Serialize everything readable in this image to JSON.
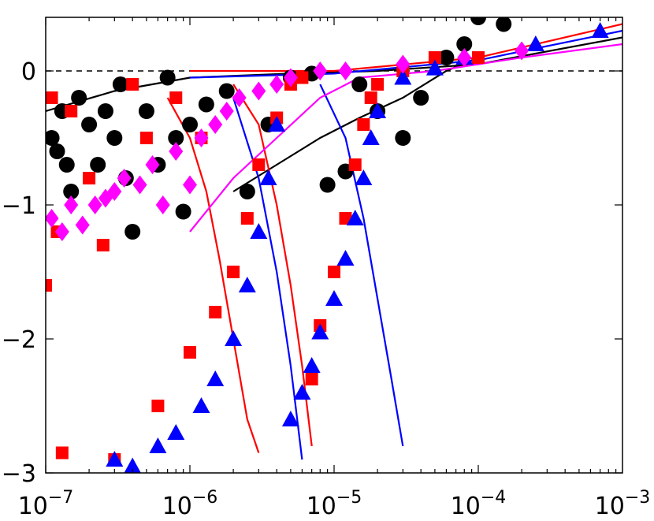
{
  "chart_data": {
    "type": "scatter",
    "x_scale": "log",
    "xlim": [
      1e-07,
      0.001
    ],
    "ylim": [
      -3,
      0.4
    ],
    "x_ticks": [
      {
        "value": 1e-07,
        "base": "10",
        "exp": "−7"
      },
      {
        "value": 1e-06,
        "base": "10",
        "exp": "−6"
      },
      {
        "value": 1e-05,
        "base": "10",
        "exp": "−5"
      },
      {
        "value": 0.0001,
        "base": "10",
        "exp": "−4"
      },
      {
        "value": 0.001,
        "base": "10",
        "exp": "−3"
      }
    ],
    "y_ticks": [
      {
        "value": 0,
        "label": "0"
      },
      {
        "value": -1,
        "label": "−1"
      },
      {
        "value": -2,
        "label": "−2"
      },
      {
        "value": -3,
        "label": "−3"
      }
    ],
    "reference_line": {
      "y": 0,
      "style": "dashed"
    },
    "colors": {
      "black": "#000000",
      "red": "#ff0000",
      "blue": "#0000ff",
      "magenta": "#ff00ff"
    },
    "series": [
      {
        "marker": "circle",
        "color": "#000000",
        "points": [
          [
            1.1e-07,
            -0.5
          ],
          [
            1.2e-07,
            -0.6
          ],
          [
            1.3e-07,
            -0.3
          ],
          [
            1.4e-07,
            -0.7
          ],
          [
            1.5e-07,
            -0.9
          ],
          [
            1.7e-07,
            -0.2
          ],
          [
            2e-07,
            -0.4
          ],
          [
            2.3e-07,
            -0.7
          ],
          [
            2.6e-07,
            -0.3
          ],
          [
            3e-07,
            -0.5
          ],
          [
            3.3e-07,
            -0.1
          ],
          [
            3.6e-07,
            -0.8
          ],
          [
            4e-07,
            -1.2
          ],
          [
            5e-07,
            -0.3
          ],
          [
            6e-07,
            -0.7
          ],
          [
            7e-07,
            -0.05
          ],
          [
            8e-07,
            -0.5
          ],
          [
            9e-07,
            -1.05
          ],
          [
            1e-06,
            -0.4
          ],
          [
            1.3e-06,
            -0.25
          ],
          [
            1.8e-06,
            -0.15
          ],
          [
            2.5e-06,
            -0.9
          ],
          [
            3.5e-06,
            -0.4
          ],
          [
            5e-06,
            -0.05
          ],
          [
            7e-06,
            -0.02
          ],
          [
            9e-06,
            -0.85
          ],
          [
            1.2e-05,
            -0.75
          ],
          [
            1.5e-05,
            -0.1
          ],
          [
            2e-05,
            -0.3
          ],
          [
            3e-05,
            -0.5
          ],
          [
            4e-05,
            -0.2
          ],
          [
            6e-05,
            0.1
          ],
          [
            8e-05,
            0.2
          ],
          [
            0.0001,
            0.4
          ],
          [
            0.00015,
            0.35
          ]
        ]
      },
      {
        "marker": "square",
        "color": "#ff0000",
        "points": [
          [
            1e-07,
            -1.6
          ],
          [
            1.1e-07,
            -0.2
          ],
          [
            1.2e-07,
            -1.2
          ],
          [
            1.3e-07,
            -2.85
          ],
          [
            1.5e-07,
            -0.3
          ],
          [
            2e-07,
            -0.8
          ],
          [
            2.5e-07,
            -1.3
          ],
          [
            3e-07,
            -2.9
          ],
          [
            4e-07,
            -0.1
          ],
          [
            5e-07,
            -0.5
          ],
          [
            6e-07,
            -2.5
          ],
          [
            8e-07,
            -0.2
          ],
          [
            1e-06,
            -2.1
          ],
          [
            1.2e-06,
            -0.5
          ],
          [
            1.5e-06,
            -1.8
          ],
          [
            2e-06,
            -1.5
          ],
          [
            2.5e-06,
            -1.1
          ],
          [
            3e-06,
            -0.7
          ],
          [
            4e-06,
            -0.35
          ],
          [
            5e-06,
            -0.1
          ],
          [
            6e-06,
            -0.05
          ],
          [
            7e-06,
            -2.3
          ],
          [
            8e-06,
            -1.9
          ],
          [
            1e-05,
            -1.5
          ],
          [
            1.2e-05,
            -1.1
          ],
          [
            1.4e-05,
            -0.7
          ],
          [
            1.6e-05,
            -0.4
          ],
          [
            1.8e-05,
            -0.2
          ],
          [
            2e-05,
            -0.1
          ],
          [
            3e-05,
            0.0
          ],
          [
            5e-05,
            0.1
          ],
          [
            0.0001,
            0.1
          ]
        ]
      },
      {
        "marker": "triangle",
        "color": "#0000ff",
        "points": [
          [
            3e-07,
            -2.9
          ],
          [
            4e-07,
            -2.95
          ],
          [
            6e-07,
            -2.8
          ],
          [
            8e-07,
            -2.7
          ],
          [
            1.2e-06,
            -2.5
          ],
          [
            1.5e-06,
            -2.3
          ],
          [
            2e-06,
            -2.0
          ],
          [
            2.5e-06,
            -1.6
          ],
          [
            3e-06,
            -1.2
          ],
          [
            3.5e-06,
            -0.8
          ],
          [
            4e-06,
            -0.4
          ],
          [
            5e-06,
            -2.6
          ],
          [
            6e-06,
            -2.4
          ],
          [
            7e-06,
            -2.2
          ],
          [
            8e-06,
            -1.95
          ],
          [
            1e-05,
            -1.7
          ],
          [
            1.2e-05,
            -1.4
          ],
          [
            1.4e-05,
            -1.1
          ],
          [
            1.6e-05,
            -0.8
          ],
          [
            1.8e-05,
            -0.5
          ],
          [
            2e-05,
            -0.3
          ],
          [
            3e-05,
            -0.05
          ],
          [
            5e-05,
            0.02
          ],
          [
            8e-05,
            0.1
          ],
          [
            0.00025,
            0.2
          ],
          [
            0.0007,
            0.3
          ]
        ]
      },
      {
        "marker": "diamond",
        "color": "#ff00ff",
        "points": [
          [
            1.1e-07,
            -1.1
          ],
          [
            1.3e-07,
            -1.2
          ],
          [
            1.5e-07,
            -1.0
          ],
          [
            1.8e-07,
            -1.15
          ],
          [
            2.2e-07,
            -1.0
          ],
          [
            2.6e-07,
            -0.95
          ],
          [
            3e-07,
            -0.9
          ],
          [
            3.5e-07,
            -0.8
          ],
          [
            4.5e-07,
            -0.85
          ],
          [
            5.5e-07,
            -0.7
          ],
          [
            6.5e-07,
            -1.0
          ],
          [
            8e-07,
            -0.6
          ],
          [
            1e-06,
            -0.85
          ],
          [
            1.2e-06,
            -0.5
          ],
          [
            1.5e-06,
            -0.4
          ],
          [
            1.8e-06,
            -0.3
          ],
          [
            2.2e-06,
            -0.2
          ],
          [
            3e-06,
            -0.15
          ],
          [
            4e-06,
            -0.1
          ],
          [
            5e-06,
            -0.05
          ],
          [
            8e-06,
            0.0
          ],
          [
            1.2e-05,
            0.0
          ],
          [
            3e-05,
            0.05
          ],
          [
            8e-05,
            0.1
          ],
          [
            0.0002,
            0.15
          ]
        ]
      }
    ],
    "lines": [
      {
        "color": "#000000",
        "points": [
          [
            1e-07,
            -0.3
          ],
          [
            3e-07,
            -0.15
          ],
          [
            1e-06,
            -0.05
          ],
          [
            5e-06,
            -0.02
          ],
          [
            2e-05,
            0.0
          ],
          [
            0.0001,
            0.05
          ],
          [
            0.001,
            0.25
          ]
        ]
      },
      {
        "color": "#000000",
        "points": [
          [
            2e-06,
            -0.9
          ],
          [
            4e-06,
            -0.7
          ],
          [
            8e-06,
            -0.5
          ],
          [
            1.5e-05,
            -0.35
          ],
          [
            3e-05,
            -0.2
          ],
          [
            6e-05,
            0.0
          ],
          [
            0.0001,
            0.1
          ]
        ]
      },
      {
        "color": "#ff0000",
        "points": [
          [
            7e-07,
            -0.2
          ],
          [
            1e-06,
            -0.5
          ],
          [
            1.3e-06,
            -0.9
          ],
          [
            1.6e-06,
            -1.4
          ],
          [
            2e-06,
            -2.0
          ],
          [
            2.5e-06,
            -2.6
          ],
          [
            3e-06,
            -2.85
          ]
        ]
      },
      {
        "color": "#ff0000",
        "points": [
          [
            2e-06,
            -0.1
          ],
          [
            3e-06,
            -0.4
          ],
          [
            4e-06,
            -1.0
          ],
          [
            5e-06,
            -1.6
          ],
          [
            6e-06,
            -2.2
          ],
          [
            7e-06,
            -2.8
          ]
        ]
      },
      {
        "color": "#0000ff",
        "points": [
          [
            2e-06,
            -0.2
          ],
          [
            3e-06,
            -0.8
          ],
          [
            4e-06,
            -1.5
          ],
          [
            5e-06,
            -2.2
          ],
          [
            6e-06,
            -2.9
          ]
        ]
      },
      {
        "color": "#0000ff",
        "points": [
          [
            8e-06,
            -0.1
          ],
          [
            1.2e-05,
            -0.5
          ],
          [
            1.6e-05,
            -1.1
          ],
          [
            2e-05,
            -1.7
          ],
          [
            2.5e-05,
            -2.3
          ],
          [
            3e-05,
            -2.8
          ]
        ]
      },
      {
        "color": "#ff0000",
        "points": [
          [
            1e-06,
            0.0
          ],
          [
            1e-05,
            0.0
          ],
          [
            0.0001,
            0.1
          ],
          [
            0.001,
            0.35
          ]
        ]
      },
      {
        "color": "#0000ff",
        "points": [
          [
            1e-06,
            -0.05
          ],
          [
            1e-05,
            -0.02
          ],
          [
            0.0001,
            0.08
          ],
          [
            0.001,
            0.3
          ]
        ]
      },
      {
        "color": "#ff00ff",
        "points": [
          [
            1e-06,
            -1.2
          ],
          [
            2e-06,
            -0.8
          ],
          [
            4e-06,
            -0.5
          ],
          [
            8e-06,
            -0.2
          ],
          [
            1.5e-05,
            -0.05
          ],
          [
            5e-05,
            0.0
          ],
          [
            0.0002,
            0.1
          ],
          [
            0.001,
            0.2
          ]
        ]
      }
    ]
  }
}
